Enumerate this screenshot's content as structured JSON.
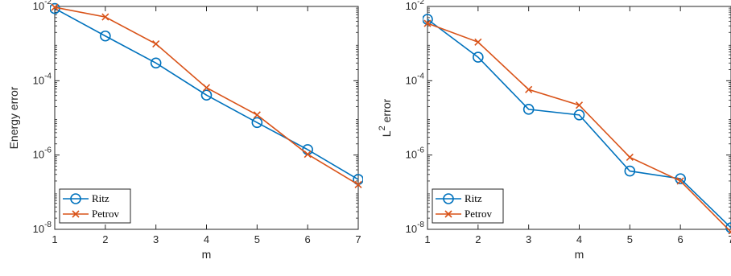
{
  "colors": {
    "ritz": "#0072BD",
    "petrov": "#D95319",
    "axis": "#262626"
  },
  "chart_data": [
    {
      "type": "line",
      "xlabel": "m",
      "ylabel": "Energy error",
      "yscale": "log",
      "xlim": [
        1,
        7
      ],
      "ylim": [
        1e-08,
        0.01
      ],
      "x": [
        1,
        2,
        3,
        4,
        5,
        6,
        7
      ],
      "xticks": [
        "1",
        "2",
        "3",
        "4",
        "5",
        "6",
        "7"
      ],
      "yticks": [
        {
          "value": 1e-08,
          "base": "10",
          "exp": "-8"
        },
        {
          "value": 1e-06,
          "base": "10",
          "exp": "-6"
        },
        {
          "value": 0.0001,
          "base": "10",
          "exp": "-4"
        },
        {
          "value": 0.01,
          "base": "10",
          "exp": "-2"
        }
      ],
      "series": [
        {
          "name": "Ritz",
          "marker": "circle",
          "values": [
            0.0088,
            0.0016,
            0.0003,
            4.1e-05,
            7.5e-06,
            1.4e-06,
            2.2e-07
          ]
        },
        {
          "name": "Petrov",
          "marker": "x",
          "values": [
            0.0095,
            0.0052,
            0.00098,
            6.5e-05,
            1.2e-05,
            1.05e-06,
            1.6e-07
          ]
        }
      ],
      "legend": "bottom-left",
      "grid": false
    },
    {
      "type": "line",
      "xlabel": "m",
      "ylabel": "L",
      "ylabel_sup": "2",
      "ylabel_rest": " error",
      "yscale": "log",
      "xlim": [
        1,
        7
      ],
      "ylim": [
        1e-08,
        0.01
      ],
      "x": [
        1,
        2,
        3,
        4,
        5,
        6,
        7
      ],
      "xticks": [
        "1",
        "2",
        "3",
        "4",
        "5",
        "6",
        "7"
      ],
      "yticks": [
        {
          "value": 1e-08,
          "base": "10",
          "exp": "-8"
        },
        {
          "value": 1e-06,
          "base": "10",
          "exp": "-6"
        },
        {
          "value": 0.0001,
          "base": "10",
          "exp": "-4"
        },
        {
          "value": 0.01,
          "base": "10",
          "exp": "-2"
        }
      ],
      "series": [
        {
          "name": "Ritz",
          "marker": "circle",
          "values": [
            0.0045,
            0.00043,
            1.7e-05,
            1.2e-05,
            3.7e-07,
            2.3e-07,
            1.1e-08
          ]
        },
        {
          "name": "Petrov",
          "marker": "x",
          "values": [
            0.0035,
            0.0011,
            5.8e-05,
            2.2e-05,
            8.7e-07,
            2e-07,
            8.5e-09
          ]
        }
      ],
      "legend": "bottom-left",
      "grid": false
    }
  ]
}
